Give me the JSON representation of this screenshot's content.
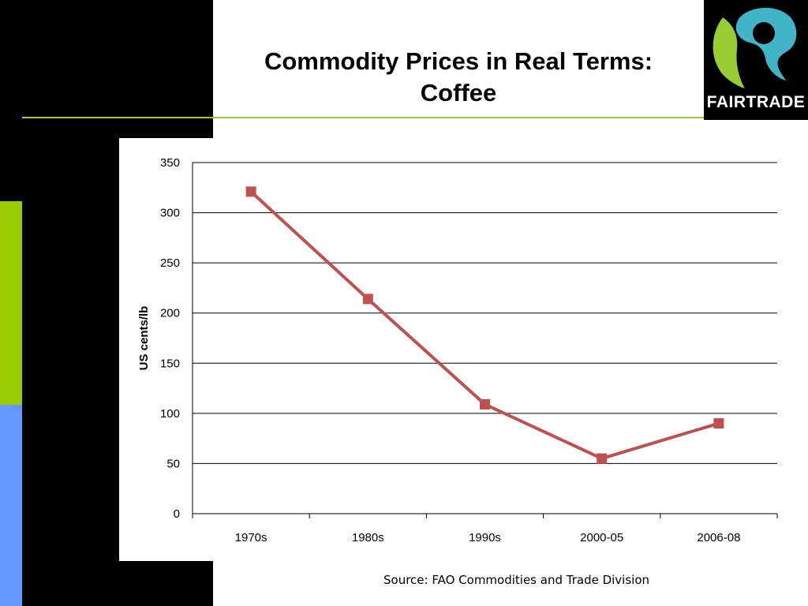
{
  "slide": {
    "title_line1": "Commodity Prices in Real Terms:",
    "title_line2": "Coffee",
    "source": "Source: FAO Commodities and Trade Division",
    "colors": {
      "background": "#000000",
      "accent_green": "#99cc00",
      "accent_blue": "#6699ff",
      "rule": "#99cc33"
    }
  },
  "logo": {
    "text": "FAIRTRADE",
    "icon": "fairtrade-mark-icon",
    "colors": {
      "teal": "#40b5c8",
      "green": "#99cc33",
      "black": "#000000"
    }
  },
  "chart_data": {
    "type": "line",
    "categories": [
      "1970s",
      "1980s",
      "1990s",
      "2000-05",
      "2006-08"
    ],
    "series": [
      {
        "values": [
          321,
          214,
          109,
          55,
          90
        ],
        "color": "#c0504d",
        "marker": "square"
      }
    ],
    "ylabel": "US cents/lb",
    "xlabel": "",
    "ylim": [
      0,
      350
    ],
    "yticks": [
      0,
      50,
      100,
      150,
      200,
      250,
      300,
      350
    ],
    "grid": true
  }
}
